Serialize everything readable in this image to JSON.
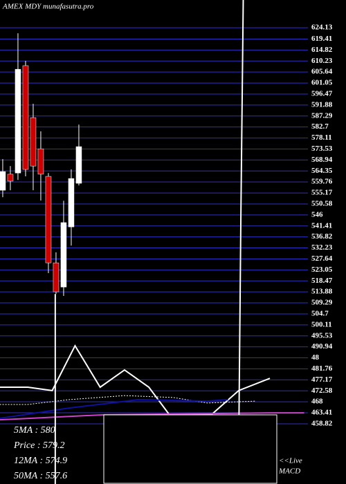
{
  "chart_data": {
    "type": "candlestick",
    "title": "AMEX  MDY munafasutra.pro",
    "open": [
      556.3,
      563.0,
      563.5,
      608.3,
      586.6,
      573.6,
      562.1,
      526.0,
      515.9,
      541.0,
      559.2
    ],
    "high": [
      569.3,
      566.4,
      621.8,
      610.3,
      592.4,
      580.9,
      563.5,
      530.4,
      551.9,
      565.0,
      583.7
    ],
    "low": [
      553.4,
      556.3,
      560.6,
      562.1,
      556.3,
      552.0,
      521.7,
      513.0,
      512.2,
      533.2,
      558.3
    ],
    "close": [
      564.1,
      560.1,
      606.8,
      565.0,
      566.4,
      563.0,
      526.0,
      513.9,
      542.8,
      561.2,
      574.5
    ],
    "up_color": "#ffffff",
    "down_color": "#cc0000",
    "series": [
      {
        "color": "#ffffff",
        "x": [
          -0.4,
          3.3,
          6.5,
          9.5,
          12.8,
          16,
          19.2,
          21.9,
          27.4,
          31,
          35.1
        ],
        "values": [
          474.1,
          474.1,
          472.7,
          491.4,
          474.1,
          481.3,
          474.1,
          462.6,
          462.6,
          472.7,
          477.8
        ]
      },
      {
        "color": "#ffffff",
        "dash": true,
        "x": [
          -0.4,
          3.3,
          8.7,
          16,
          22.4,
          26.9,
          33.3
        ],
        "values": [
          466.9,
          466.9,
          468.9,
          470.6,
          469.8,
          467.5,
          468.3
        ]
      },
      {
        "color": "#1010a0",
        "x": [
          -0.4,
          8.7,
          17.8,
          26.9,
          29.6
        ],
        "values": [
          461.1,
          465.4,
          468.9,
          468.3,
          468.9
        ]
      },
      {
        "color": "#cc44cc",
        "x": [
          -0.4,
          13.3,
          36,
          39.6
        ],
        "values": [
          460.5,
          462.6,
          463.4,
          463.4
        ]
      },
      {
        "color": "#ffffff",
        "x": [
          13.3,
          31,
          31.3,
          31.6
        ],
        "values": [
          448.1,
          448.1,
          549.1,
          635.7
        ]
      },
      {
        "color": "#ffffff",
        "x": [
          6.9,
          6.9
        ],
        "values": [
          513.0,
          433.7
        ]
      }
    ],
    "xlim": [
      -0.36,
      45.1
    ],
    "ylim": [
      433.7,
      635.7
    ],
    "yticks": [
      624.13,
      619.41,
      614.82,
      610.23,
      605.64,
      601.05,
      596.47,
      591.88,
      587.29,
      582.7,
      578.11,
      573.53,
      568.94,
      564.35,
      559.76,
      555.17,
      550.58,
      546,
      541.41,
      536.82,
      532.23,
      527.64,
      523.05,
      518.47,
      513.88,
      509.29,
      504.7,
      500.11,
      495.53,
      490.94,
      {
        "value": 486.35,
        "label": "48"
      },
      481.76,
      477.17,
      472.58,
      468,
      463.41,
      458.82
    ],
    "grid": true,
    "grid_color": "#3030c0",
    "annotations": [
      "5MA : 580",
      "Price  : 579.2",
      "12MA : 574.9",
      "50MA : 557.6"
    ],
    "live_label": "<<Live",
    "panel_label": "MACD"
  }
}
